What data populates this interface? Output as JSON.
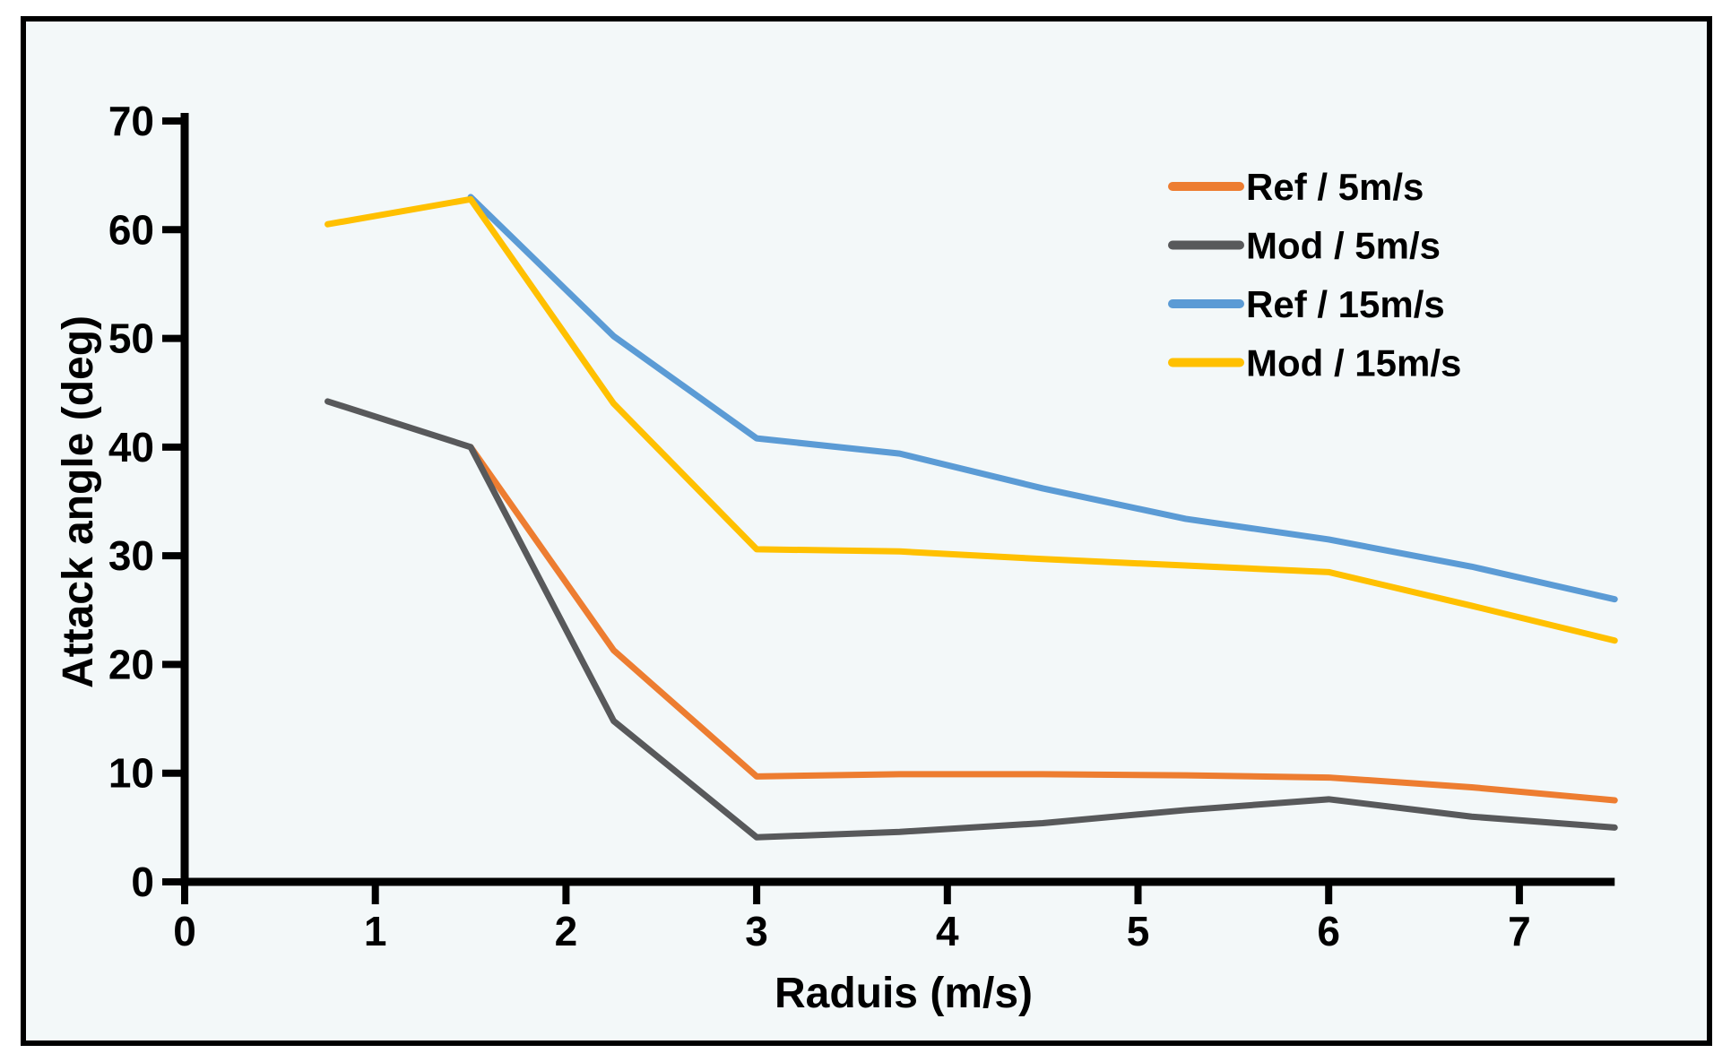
{
  "figure": {
    "background": "#f3f8f9",
    "border_color": "#000000",
    "axis_color": "#000000",
    "text_color": "#000000"
  },
  "chart_data": {
    "type": "line",
    "title": "",
    "xlabel": "Raduis (m/s)",
    "ylabel": "Attack angle (deg)",
    "xlim": [
      0,
      7.5
    ],
    "ylim": [
      0,
      70
    ],
    "x_ticks": [
      0,
      1,
      2,
      3,
      4,
      5,
      6,
      7
    ],
    "x_tick_labels": [
      "0",
      "1",
      "2",
      "3",
      "4",
      "5",
      "6",
      "7"
    ],
    "y_ticks": [
      0,
      10,
      20,
      30,
      40,
      50,
      60,
      70
    ],
    "y_tick_labels": [
      "0",
      "10",
      "20",
      "30",
      "40",
      "50",
      "60",
      "70"
    ],
    "grid": false,
    "legend_position": "upper right",
    "x": [
      0.75,
      1.5,
      2.25,
      3,
      3.75,
      4.5,
      5.25,
      6,
      6.75,
      7.5
    ],
    "series": [
      {
        "name": "Ref / 5m/s",
        "color": "#ED7D31",
        "values": [
          null,
          40,
          21.3,
          9.7,
          9.9,
          9.9,
          9.8,
          9.6,
          8.7,
          7.5
        ]
      },
      {
        "name": "Mod / 5m/s",
        "color": "#58595B",
        "values": [
          44.2,
          40,
          14.8,
          4.1,
          4.6,
          5.4,
          6.6,
          7.6,
          6.0,
          5.0
        ]
      },
      {
        "name": "Ref / 15m/s",
        "color": "#5B9BD5",
        "values": [
          null,
          63,
          50.2,
          40.8,
          39.4,
          36.2,
          33.4,
          31.5,
          29.0,
          26.0
        ]
      },
      {
        "name": "Mod / 15m/s",
        "color": "#FFC000",
        "values": [
          60.5,
          62.8,
          44.0,
          30.6,
          30.4,
          29.7,
          29.1,
          28.5,
          25.4,
          22.2
        ]
      }
    ]
  }
}
